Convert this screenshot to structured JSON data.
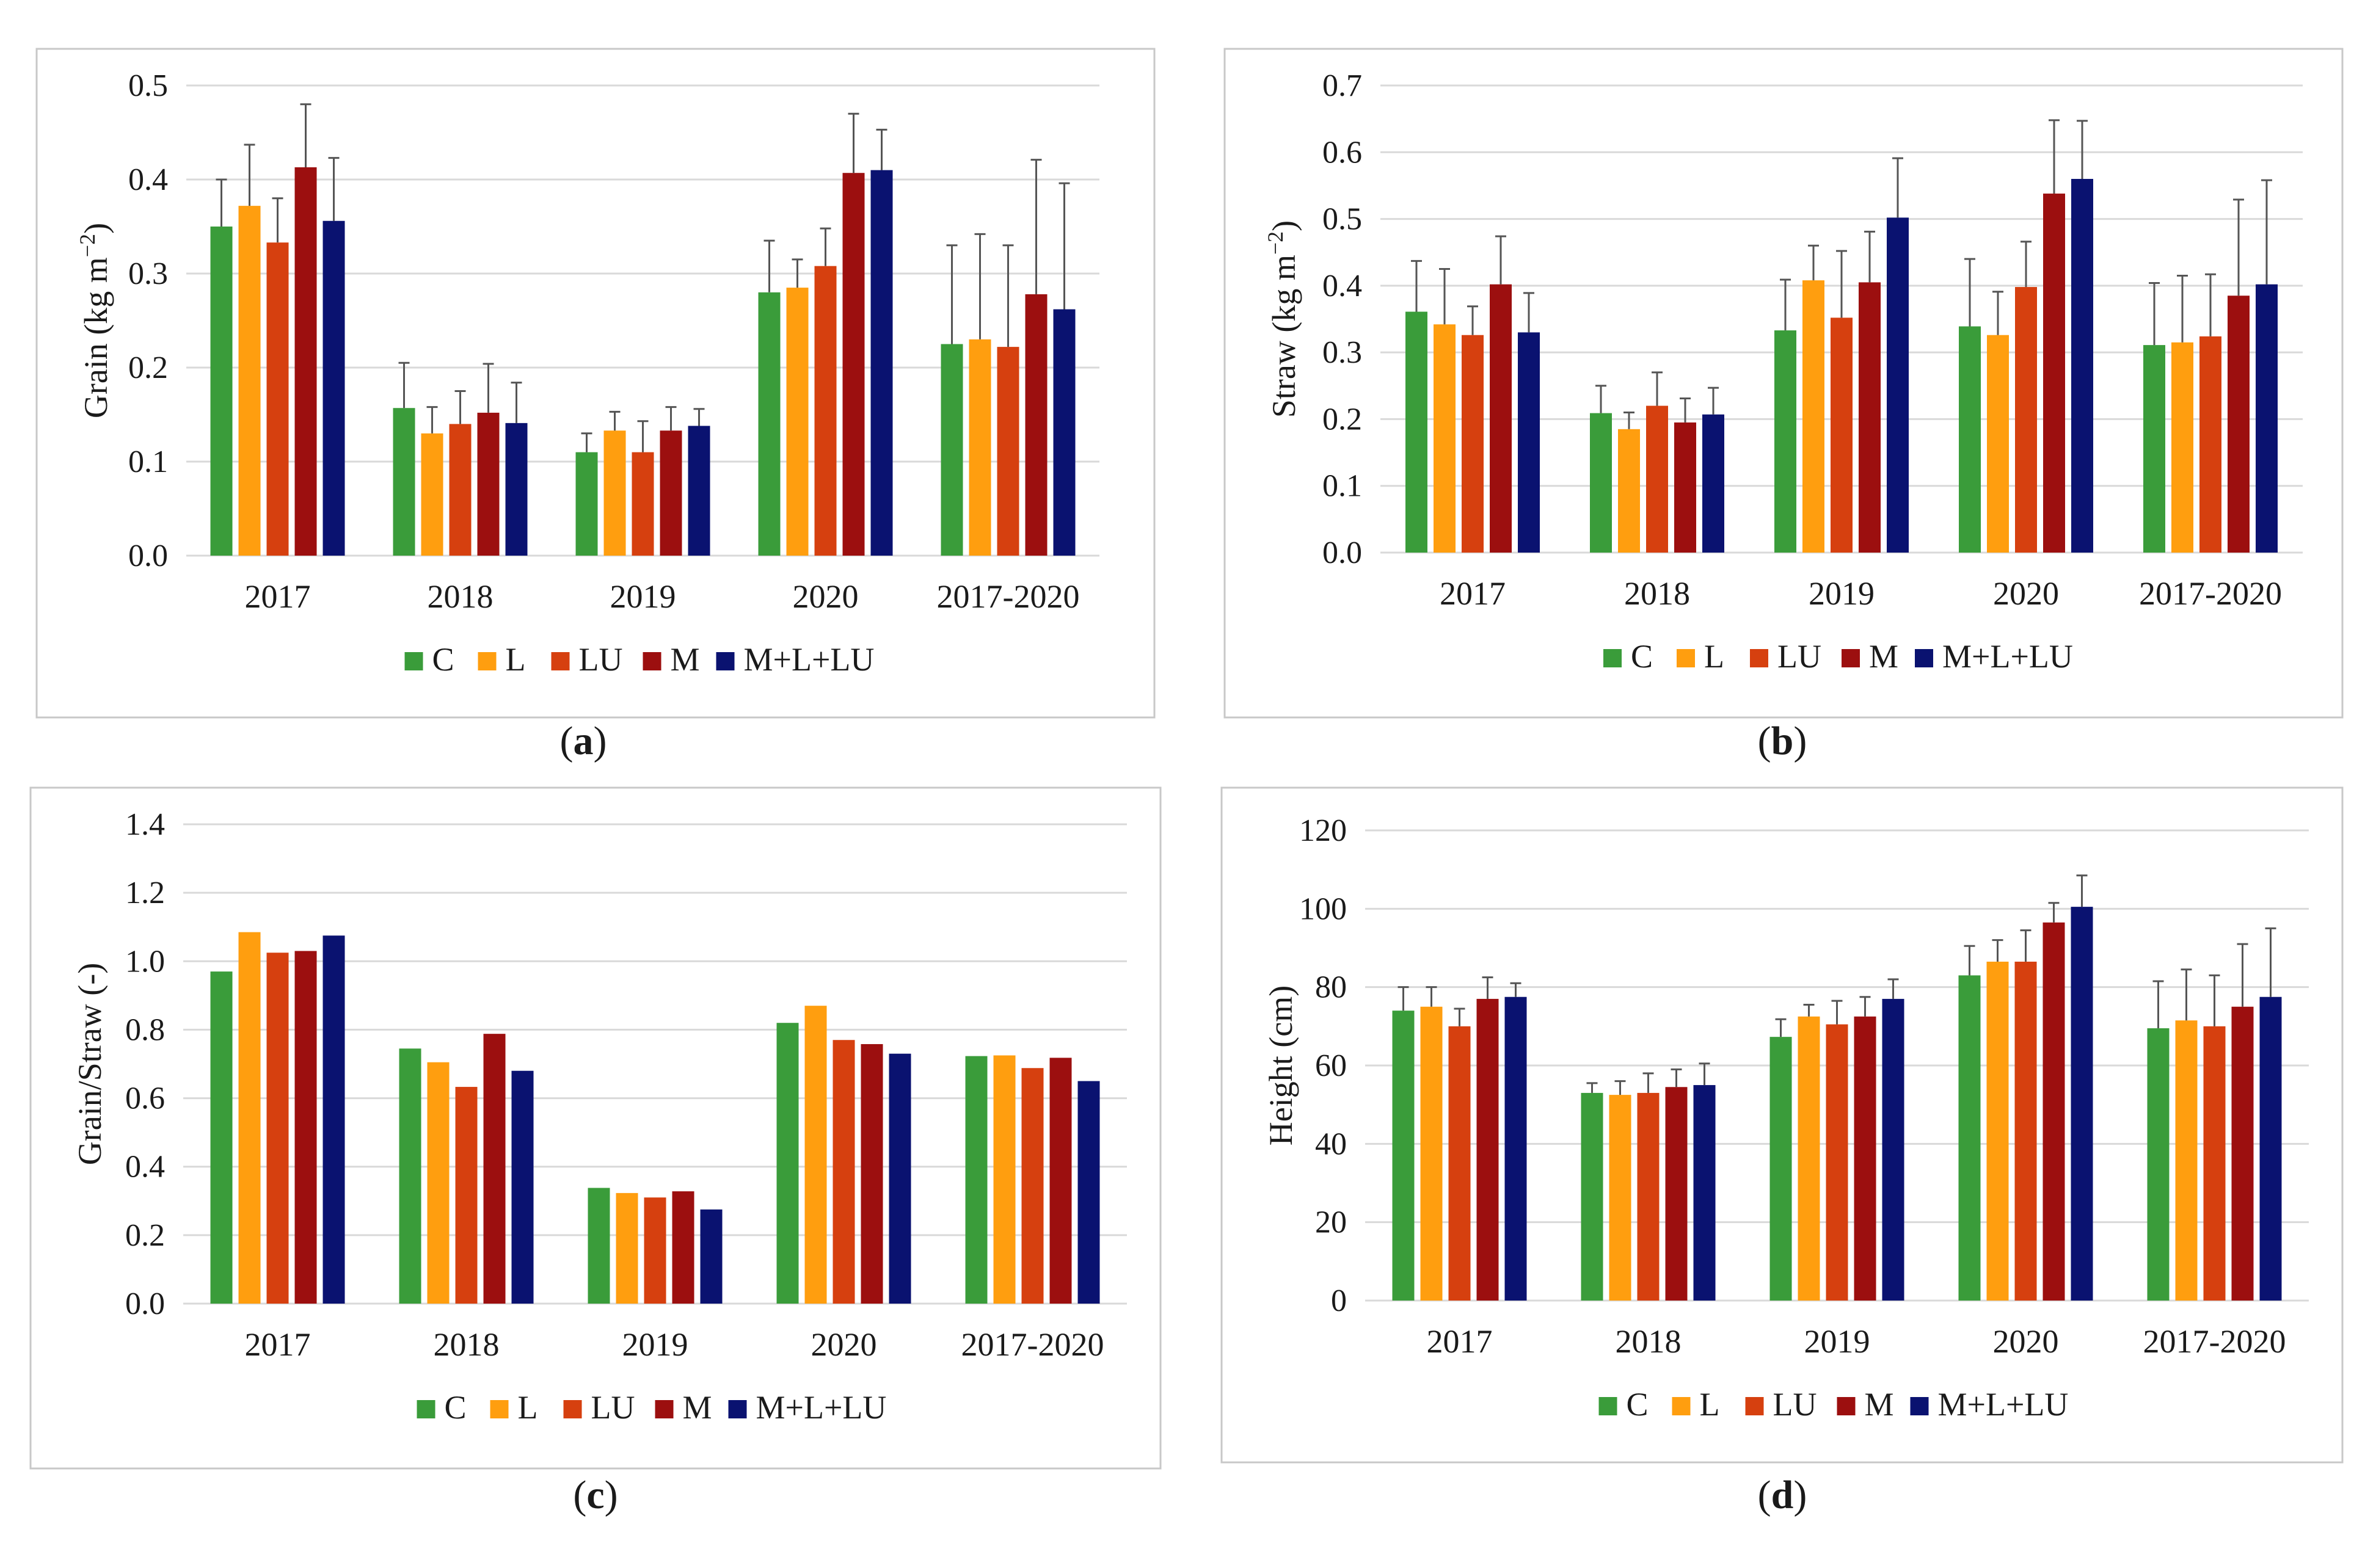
{
  "colors": {
    "C": "#3a9c3a",
    "L": "#ff9e0f",
    "LU": "#d6400f",
    "M": "#9c0f0f",
    "M+L+LU": "#0a1270",
    "grid": "#d9d9d9",
    "error_bar": "#555555",
    "frame": "#c8c8c8"
  },
  "chart_data": [
    {
      "panel": "a",
      "panel_label": "(a)",
      "type": "bar",
      "title": "",
      "xlabel": "",
      "ylabel_main": "Grain (kg m",
      "ylabel_sup": "−2",
      "ylabel_close": ")",
      "ylim": [
        0,
        0.5
      ],
      "yticks": [
        0,
        0.1,
        0.2,
        0.3,
        0.4,
        0.5
      ],
      "ytick_labels": [
        "0.0",
        "0.1",
        "0.2",
        "0.3",
        "0.4",
        "0.5"
      ],
      "categories": [
        "2017",
        "2018",
        "2019",
        "2020",
        "2017-2020"
      ],
      "legend": [
        "C",
        "L",
        "LU",
        "M",
        "M+L+LU"
      ],
      "legend_position": "bottom",
      "grid": true,
      "series": [
        {
          "name": "C",
          "values": [
            0.35,
            0.157,
            0.11,
            0.28,
            0.225
          ],
          "errors": [
            0.05,
            0.048,
            0.02,
            0.055,
            0.105
          ]
        },
        {
          "name": "L",
          "values": [
            0.372,
            0.13,
            0.133,
            0.285,
            0.23
          ],
          "errors": [
            0.065,
            0.028,
            0.02,
            0.03,
            0.112
          ]
        },
        {
          "name": "LU",
          "values": [
            0.333,
            0.14,
            0.11,
            0.308,
            0.222
          ],
          "errors": [
            0.047,
            0.035,
            0.033,
            0.04,
            0.108
          ]
        },
        {
          "name": "M",
          "values": [
            0.413,
            0.152,
            0.133,
            0.407,
            0.278
          ],
          "errors": [
            0.067,
            0.052,
            0.025,
            0.063,
            0.143
          ]
        },
        {
          "name": "M+L+LU",
          "values": [
            0.356,
            0.141,
            0.138,
            0.41,
            0.262
          ],
          "errors": [
            0.067,
            0.043,
            0.018,
            0.043,
            0.134
          ]
        }
      ]
    },
    {
      "panel": "b",
      "panel_label": "(b)",
      "type": "bar",
      "title": "",
      "xlabel": "",
      "ylabel_main": "Straw (kg m",
      "ylabel_sup": "−2",
      "ylabel_close": ")",
      "ylim": [
        0,
        0.7
      ],
      "yticks": [
        0,
        0.1,
        0.2,
        0.3,
        0.4,
        0.5,
        0.6,
        0.7
      ],
      "ytick_labels": [
        "0.0",
        "0.1",
        "0.2",
        "0.3",
        "0.4",
        "0.5",
        "0.6",
        "0.7"
      ],
      "categories": [
        "2017",
        "2018",
        "2019",
        "2020",
        "2017-2020"
      ],
      "legend": [
        "C",
        "L",
        "LU",
        "M",
        "M+L+LU"
      ],
      "legend_position": "bottom",
      "grid": true,
      "series": [
        {
          "name": "C",
          "values": [
            0.361,
            0.209,
            0.333,
            0.339,
            0.311
          ],
          "errors": [
            0.076,
            0.041,
            0.076,
            0.101,
            0.093
          ]
        },
        {
          "name": "L",
          "values": [
            0.342,
            0.185,
            0.408,
            0.326,
            0.315
          ],
          "errors": [
            0.083,
            0.025,
            0.052,
            0.065,
            0.1
          ]
        },
        {
          "name": "LU",
          "values": [
            0.326,
            0.22,
            0.352,
            0.398,
            0.324
          ],
          "errors": [
            0.043,
            0.05,
            0.1,
            0.068,
            0.093
          ]
        },
        {
          "name": "M",
          "values": [
            0.402,
            0.195,
            0.405,
            0.538,
            0.385
          ],
          "errors": [
            0.072,
            0.036,
            0.076,
            0.11,
            0.144
          ]
        },
        {
          "name": "M+L+LU",
          "values": [
            0.33,
            0.207,
            0.502,
            0.56,
            0.402
          ],
          "errors": [
            0.059,
            0.04,
            0.089,
            0.087,
            0.156
          ]
        }
      ]
    },
    {
      "panel": "c",
      "panel_label": "(c)",
      "type": "bar",
      "title": "",
      "xlabel": "",
      "ylabel_main": "Grain/Straw (-)",
      "ylabel_sup": "",
      "ylabel_close": "",
      "ylim": [
        0,
        1.4
      ],
      "yticks": [
        0,
        0.2,
        0.4,
        0.6,
        0.8,
        1.0,
        1.2,
        1.4
      ],
      "ytick_labels": [
        "0.0",
        "0.2",
        "0.4",
        "0.6",
        "0.8",
        "1.0",
        "1.2",
        "1.4"
      ],
      "categories": [
        "2017",
        "2018",
        "2019",
        "2020",
        "2017-2020"
      ],
      "legend": [
        "C",
        "L",
        "LU",
        "M",
        "M+L+LU"
      ],
      "legend_position": "bottom",
      "grid": true,
      "series": [
        {
          "name": "C",
          "values": [
            0.97,
            0.745,
            0.338,
            0.82,
            0.723
          ]
        },
        {
          "name": "L",
          "values": [
            1.085,
            0.705,
            0.323,
            0.87,
            0.725
          ]
        },
        {
          "name": "LU",
          "values": [
            1.025,
            0.633,
            0.31,
            0.77,
            0.688
          ]
        },
        {
          "name": "M",
          "values": [
            1.03,
            0.788,
            0.328,
            0.758,
            0.718
          ]
        },
        {
          "name": "M+L+LU",
          "values": [
            1.075,
            0.68,
            0.275,
            0.73,
            0.65
          ]
        }
      ]
    },
    {
      "panel": "d",
      "panel_label": "(d)",
      "type": "bar",
      "title": "",
      "xlabel": "",
      "ylabel_main": "Height  (cm)",
      "ylabel_sup": "",
      "ylabel_close": "",
      "ylim": [
        0,
        120
      ],
      "yticks": [
        0,
        20,
        40,
        60,
        80,
        100,
        120
      ],
      "ytick_labels": [
        "0",
        "20",
        "40",
        "60",
        "80",
        "100",
        "120"
      ],
      "categories": [
        "2017",
        "2018",
        "2019",
        "2020",
        "2017-2020"
      ],
      "legend": [
        "C",
        "L",
        "LU",
        "M",
        "M+L+LU"
      ],
      "legend_position": "bottom",
      "grid": true,
      "series": [
        {
          "name": "C",
          "values": [
            74.0,
            53.0,
            67.3,
            83.0,
            69.5
          ],
          "errors": [
            6.0,
            2.5,
            4.5,
            7.5,
            12.0
          ]
        },
        {
          "name": "L",
          "values": [
            75.0,
            52.5,
            72.5,
            86.5,
            71.5
          ],
          "errors": [
            5.0,
            3.5,
            3.0,
            5.5,
            13.0
          ]
        },
        {
          "name": "LU",
          "values": [
            70.0,
            53.0,
            70.5,
            86.5,
            70.0
          ],
          "errors": [
            4.5,
            5.0,
            6.0,
            8.0,
            13.0
          ]
        },
        {
          "name": "M",
          "values": [
            77.0,
            54.5,
            72.5,
            96.5,
            75.0
          ],
          "errors": [
            5.5,
            4.5,
            5.0,
            5.0,
            16.0
          ]
        },
        {
          "name": "M+L+LU",
          "values": [
            77.5,
            55.0,
            77.0,
            100.5,
            77.5
          ],
          "errors": [
            3.5,
            5.5,
            5.0,
            8.0,
            17.5
          ]
        }
      ]
    }
  ]
}
